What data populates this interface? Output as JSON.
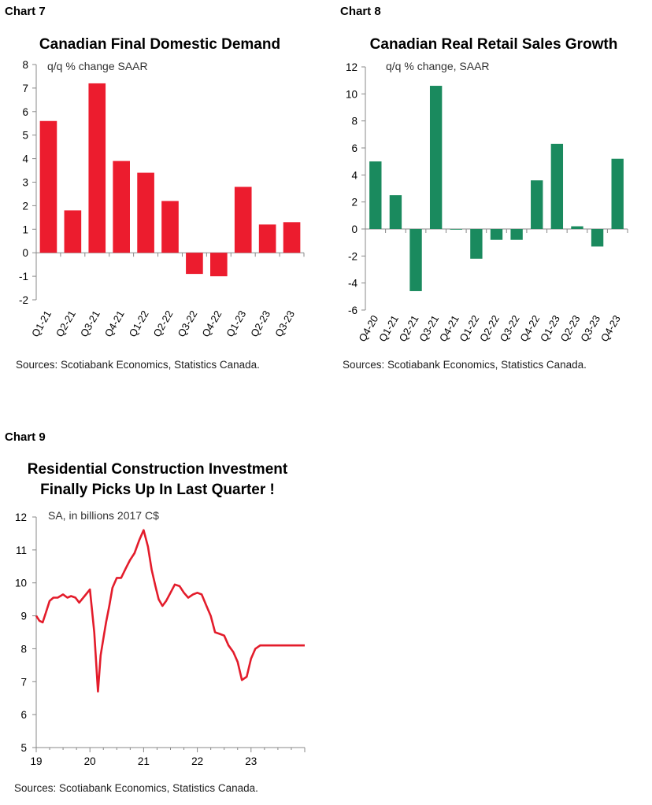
{
  "labels": {
    "chart7": "Chart 7",
    "chart8": "Chart 8",
    "chart9": "Chart 9"
  },
  "chart_data": [
    {
      "type": "bar",
      "title": "Canadian Final Domestic Demand",
      "subtitle": "q/q % change SAAR",
      "source": "Sources: Scotiabank Economics, Statistics Canada.",
      "color": "#ec1c2e",
      "categories": [
        "Q1-21",
        "Q2-21",
        "Q3-21",
        "Q4-21",
        "Q1-22",
        "Q2-22",
        "Q3-22",
        "Q4-22",
        "Q1-23",
        "Q2-23",
        "Q3-23"
      ],
      "values": [
        5.6,
        1.8,
        7.2,
        3.9,
        3.4,
        2.2,
        -0.9,
        -1.0,
        2.8,
        1.2,
        1.3
      ],
      "ylim": [
        -2,
        8
      ],
      "yticks": [
        "-2",
        "-1",
        "0",
        "1",
        "2",
        "3",
        "4",
        "5",
        "6",
        "7",
        "8"
      ],
      "xlabel": "",
      "ylabel": ""
    },
    {
      "type": "bar",
      "title": "Canadian Real Retail Sales Growth",
      "subtitle": "q/q % change, SAAR",
      "source": "Sources: Scotiabank Economics, Statistics Canada.",
      "color": "#1a8a5e",
      "categories": [
        "Q4-20",
        "Q1-21",
        "Q2-21",
        "Q3-21",
        "Q4-21",
        "Q1-22",
        "Q2-22",
        "Q3-22",
        "Q4-22",
        "Q1-23",
        "Q2-23",
        "Q3-23",
        "Q4-23"
      ],
      "values": [
        5.0,
        2.5,
        -4.6,
        10.6,
        -0.05,
        -2.2,
        -0.8,
        -0.8,
        3.6,
        6.3,
        0.2,
        -1.3,
        5.2
      ],
      "ylim": [
        -6,
        12
      ],
      "yticks": [
        "-6",
        "-4",
        "-2",
        "0",
        "2",
        "4",
        "6",
        "8",
        "10",
        "12"
      ],
      "xlabel": "",
      "ylabel": ""
    },
    {
      "type": "line",
      "title": [
        "Residential Construction Investment",
        "Finally Picks Up In Last Quarter !"
      ],
      "subtitle": "SA, in billions 2017 C$",
      "source": "Sources: Scotiabank Economics, Statistics Canada.",
      "color": "#e31c2b",
      "ylim": [
        5,
        12
      ],
      "yticks": [
        "5",
        "6",
        "7",
        "8",
        "9",
        "10",
        "11",
        "12"
      ],
      "xlim": [
        19,
        24
      ],
      "xticks": [
        {
          "label": "19",
          "x": 19
        },
        {
          "label": "20",
          "x": 20
        },
        {
          "label": "21",
          "x": 21
        },
        {
          "label": "22",
          "x": 22
        },
        {
          "label": "23",
          "x": 23
        }
      ],
      "x": [
        19.0,
        19.06,
        19.12,
        19.18,
        19.25,
        19.32,
        19.4,
        19.5,
        19.58,
        19.65,
        19.73,
        19.8,
        19.9,
        20.0,
        20.08,
        20.15,
        20.2,
        20.26,
        20.3,
        20.36,
        20.42,
        20.5,
        20.58,
        20.67,
        20.75,
        20.83,
        20.92,
        21.0,
        21.08,
        21.15,
        21.22,
        21.28,
        21.35,
        21.42,
        21.5,
        21.58,
        21.67,
        21.75,
        21.83,
        21.92,
        22.0,
        22.08,
        22.17,
        22.25,
        22.33,
        22.42,
        22.5,
        22.58,
        22.67,
        22.75,
        22.83,
        22.92,
        23.0,
        23.08,
        23.17,
        23.25,
        23.33,
        23.42,
        23.5,
        23.58,
        23.67,
        23.75,
        23.83,
        23.92,
        24.0
      ],
      "values": [
        9.0,
        8.85,
        8.8,
        9.1,
        9.45,
        9.55,
        9.55,
        9.65,
        9.55,
        9.6,
        9.55,
        9.4,
        9.6,
        9.8,
        8.5,
        6.7,
        7.8,
        8.4,
        8.8,
        9.3,
        9.85,
        10.15,
        10.15,
        10.45,
        10.7,
        10.9,
        11.3,
        11.6,
        11.1,
        10.4,
        9.9,
        9.5,
        9.3,
        9.45,
        9.7,
        9.95,
        9.9,
        9.7,
        9.55,
        9.65,
        9.7,
        9.65,
        9.3,
        9.0,
        8.5,
        8.45,
        8.4,
        8.1,
        7.9,
        7.6,
        7.05,
        7.15,
        7.7,
        8.0,
        8.1,
        8.1,
        8.1,
        8.1,
        8.1,
        8.1,
        8.1,
        8.1,
        8.1,
        8.1,
        8.1
      ],
      "xlabel": "",
      "ylabel": ""
    }
  ]
}
